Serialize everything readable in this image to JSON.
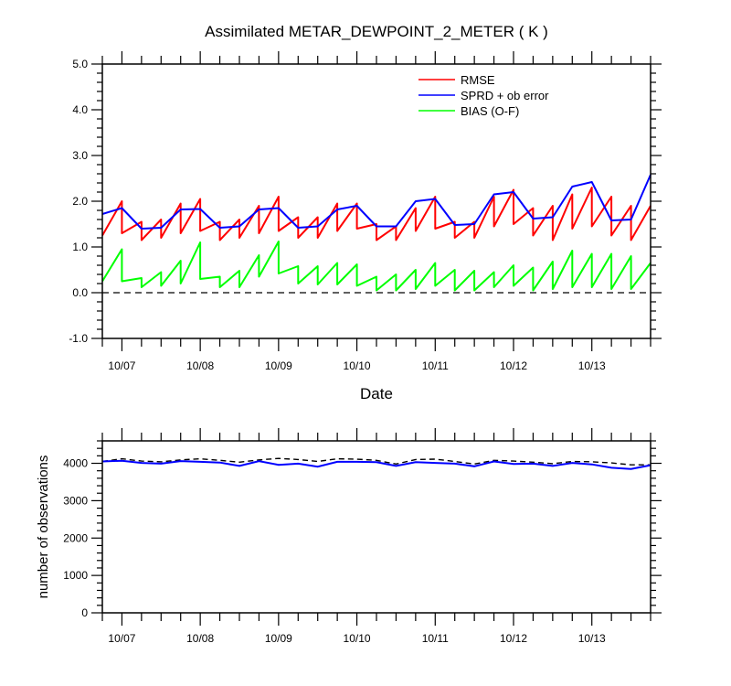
{
  "chart_data": [
    {
      "type": "line",
      "title": "Assimilated METAR_DEWPOINT_2_METER ( K )",
      "xlabel": "Date",
      "ylabel": "",
      "x_ticks": [
        "10/07",
        "10/08",
        "10/09",
        "10/10",
        "10/11",
        "10/12",
        "10/13"
      ],
      "x": [
        "10/06 18Z",
        "10/07 00Z",
        "10/07 00Z",
        "10/07 06Z",
        "10/07 06Z",
        "10/07 12Z",
        "10/07 12Z",
        "10/07 18Z",
        "10/07 18Z",
        "10/08 00Z",
        "10/08 00Z",
        "10/08 06Z",
        "10/08 06Z",
        "10/08 12Z",
        "10/08 12Z",
        "10/08 18Z",
        "10/08 18Z",
        "10/09 00Z",
        "10/09 00Z",
        "10/09 06Z",
        "10/09 06Z",
        "10/09 12Z",
        "10/09 12Z",
        "10/09 18Z",
        "10/09 18Z",
        "10/10 00Z",
        "10/10 00Z",
        "10/10 06Z",
        "10/10 06Z",
        "10/10 12Z",
        "10/10 12Z",
        "10/10 18Z",
        "10/10 18Z",
        "10/11 00Z",
        "10/11 00Z",
        "10/11 06Z",
        "10/11 06Z",
        "10/11 12Z",
        "10/11 12Z",
        "10/11 18Z",
        "10/11 18Z",
        "10/12 00Z",
        "10/12 00Z",
        "10/12 06Z",
        "10/12 06Z",
        "10/12 12Z",
        "10/12 12Z",
        "10/12 18Z",
        "10/12 18Z",
        "10/13 00Z",
        "10/13 00Z",
        "10/13 06Z",
        "10/13 06Z",
        "10/13 12Z",
        "10/13 12Z",
        "10/13 18Z"
      ],
      "ylim": [
        -1.0,
        5.0
      ],
      "y_ticks": [
        "-1.0",
        "0.0",
        "1.0",
        "2.0",
        "3.0",
        "4.0",
        "5.0"
      ],
      "reference_line": 0.0,
      "grid": false,
      "legend_position": "top-right",
      "series": [
        {
          "name": "RMSE",
          "color": "#ff0000",
          "values": [
            1.25,
            2.0,
            1.3,
            1.55,
            1.15,
            1.6,
            1.2,
            1.95,
            1.3,
            2.05,
            1.35,
            1.55,
            1.15,
            1.6,
            1.2,
            1.9,
            1.3,
            2.1,
            1.35,
            1.65,
            1.2,
            1.65,
            1.2,
            1.95,
            1.35,
            1.95,
            1.4,
            1.5,
            1.15,
            1.45,
            1.15,
            1.85,
            1.35,
            2.1,
            1.4,
            1.55,
            1.2,
            1.55,
            1.2,
            2.1,
            1.45,
            2.25,
            1.5,
            1.85,
            1.25,
            1.9,
            1.15,
            2.15,
            1.4,
            2.3,
            1.45,
            2.1,
            1.25,
            1.9,
            1.15,
            1.9
          ]
        },
        {
          "name": "SPRD + ob error",
          "color": "#0000ff",
          "values": [
            1.72,
            1.85,
            1.85,
            1.4,
            1.4,
            1.42,
            1.42,
            1.82,
            1.82,
            1.83,
            1.83,
            1.42,
            1.42,
            1.45,
            1.45,
            1.82,
            1.82,
            1.85,
            1.85,
            1.42,
            1.42,
            1.45,
            1.45,
            1.82,
            1.82,
            1.9,
            1.9,
            1.45,
            1.45,
            1.45,
            1.45,
            2.0,
            2.0,
            2.05,
            2.05,
            1.48,
            1.48,
            1.5,
            1.5,
            2.15,
            2.15,
            2.2,
            2.2,
            1.62,
            1.62,
            1.65,
            1.65,
            2.32,
            2.32,
            2.42,
            2.42,
            1.58,
            1.58,
            1.6,
            1.6,
            2.58
          ]
        },
        {
          "name": "BIAS (O-F)",
          "color": "#00ff00",
          "values": [
            0.25,
            0.95,
            0.25,
            0.32,
            0.12,
            0.45,
            0.15,
            0.7,
            0.2,
            1.1,
            0.3,
            0.35,
            0.12,
            0.48,
            0.12,
            0.82,
            0.35,
            1.12,
            0.42,
            0.58,
            0.2,
            0.58,
            0.18,
            0.65,
            0.18,
            0.62,
            0.15,
            0.35,
            0.05,
            0.4,
            0.05,
            0.5,
            0.08,
            0.65,
            0.15,
            0.5,
            0.05,
            0.48,
            0.05,
            0.45,
            0.12,
            0.6,
            0.15,
            0.55,
            0.05,
            0.68,
            0.08,
            0.92,
            0.12,
            0.85,
            0.12,
            0.85,
            0.08,
            0.8,
            0.08,
            0.65
          ]
        }
      ]
    },
    {
      "type": "line",
      "title": "",
      "xlabel": "",
      "ylabel": "number of observations",
      "x_ticks": [
        "10/07",
        "10/08",
        "10/09",
        "10/10",
        "10/11",
        "10/12",
        "10/13"
      ],
      "x": [
        "10/06 18Z",
        "10/07 00Z",
        "10/07 06Z",
        "10/07 12Z",
        "10/07 18Z",
        "10/08 00Z",
        "10/08 06Z",
        "10/08 12Z",
        "10/08 18Z",
        "10/09 00Z",
        "10/09 06Z",
        "10/09 12Z",
        "10/09 18Z",
        "10/10 00Z",
        "10/10 06Z",
        "10/10 12Z",
        "10/10 18Z",
        "10/11 00Z",
        "10/11 06Z",
        "10/11 12Z",
        "10/11 18Z",
        "10/12 00Z",
        "10/12 06Z",
        "10/12 12Z",
        "10/12 18Z",
        "10/13 00Z",
        "10/13 06Z",
        "10/13 12Z",
        "10/13 18Z"
      ],
      "ylim": [
        0,
        4600
      ],
      "y_ticks": [
        "0",
        "1000",
        "2000",
        "3000",
        "4000"
      ],
      "grid": false,
      "series": [
        {
          "style": "dashed",
          "color": "#000000",
          "values": [
            4050,
            4120,
            4060,
            4040,
            4090,
            4120,
            4080,
            4030,
            4090,
            4130,
            4100,
            4050,
            4120,
            4110,
            4080,
            3980,
            4100,
            4110,
            4050,
            3980,
            4080,
            4060,
            4030,
            3990,
            4050,
            4040,
            4010,
            3960,
            3960
          ]
        },
        {
          "color": "#0000ff",
          "values": [
            4050,
            4070,
            4010,
            3990,
            4060,
            4040,
            4020,
            3930,
            4060,
            3960,
            3990,
            3910,
            4040,
            4040,
            4030,
            3930,
            4030,
            4010,
            3990,
            3920,
            4050,
            3980,
            3990,
            3930,
            4010,
            3970,
            3880,
            3850,
            3950
          ]
        }
      ]
    }
  ]
}
